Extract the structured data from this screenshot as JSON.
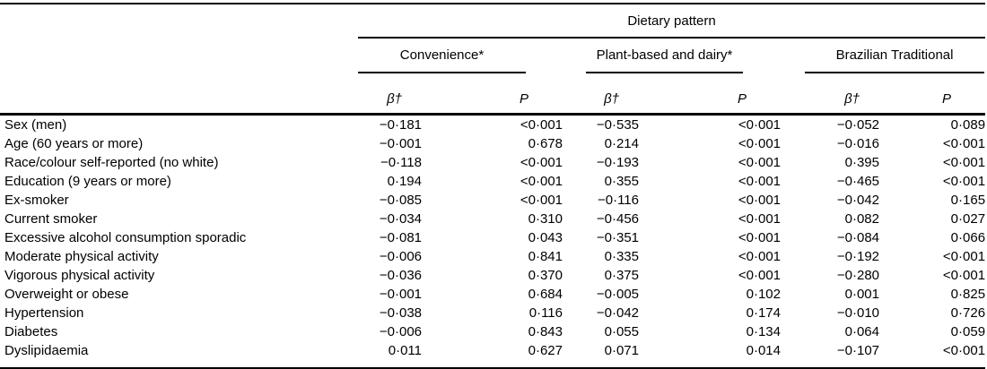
{
  "table": {
    "spanner": "Dietary pattern",
    "groups": [
      {
        "label": "Convenience*"
      },
      {
        "label": "Plant-based and dairy*"
      },
      {
        "label": "Brazilian Traditional"
      }
    ],
    "col_headers": {
      "beta": "β†",
      "p": "P"
    },
    "rows": [
      {
        "label": "Sex (men)",
        "values": [
          "−0·181",
          "<0·001",
          "−0·535",
          "<0·001",
          "−0·052",
          "0·089"
        ]
      },
      {
        "label": "Age (60 years or more)",
        "values": [
          "−0·001",
          "0·678",
          "0·214",
          "<0·001",
          "−0·016",
          "<0·001"
        ]
      },
      {
        "label": "Race/colour self-reported (no white)",
        "values": [
          "−0·118",
          "<0·001",
          "−0·193",
          "<0·001",
          "0·395",
          "<0·001"
        ]
      },
      {
        "label": "Education (9 years or more)",
        "values": [
          "0·194",
          "<0·001",
          "0·355",
          "<0·001",
          "−0·465",
          "<0·001"
        ]
      },
      {
        "label": "Ex-smoker",
        "values": [
          "−0·085",
          "<0·001",
          "−0·116",
          "<0·001",
          "−0·042",
          "0·165"
        ]
      },
      {
        "label": "Current smoker",
        "values": [
          "−0·034",
          "0·310",
          "−0·456",
          "<0·001",
          "0·082",
          "0·027"
        ]
      },
      {
        "label": "Excessive alcohol consumption sporadic",
        "values": [
          "−0·081",
          "0·043",
          "−0·351",
          "<0·001",
          "−0·084",
          "0·066"
        ]
      },
      {
        "label": "Moderate physical activity",
        "values": [
          "−0·006",
          "0·841",
          "0·335",
          "<0·001",
          "−0·192",
          "<0·001"
        ]
      },
      {
        "label": "Vigorous physical activity",
        "values": [
          "−0·036",
          "0·370",
          "0·375",
          "<0·001",
          "−0·280",
          "<0·001"
        ]
      },
      {
        "label": "Overweight or obese",
        "values": [
          "−0·001",
          "0·684",
          "−0·005",
          "0·102",
          "0·001",
          "0·825"
        ]
      },
      {
        "label": "Hypertension",
        "values": [
          "−0·038",
          "0·116",
          "−0·042",
          "0·174",
          "−0·010",
          "0·726"
        ]
      },
      {
        "label": "Diabetes",
        "values": [
          "−0·006",
          "0·843",
          "0·055",
          "0·134",
          "0·064",
          "0·059"
        ]
      },
      {
        "label": "Dyslipidaemia",
        "values": [
          "0·011",
          "0·627",
          "0·071",
          "0·014",
          "−0·107",
          "<0·001"
        ]
      }
    ]
  }
}
